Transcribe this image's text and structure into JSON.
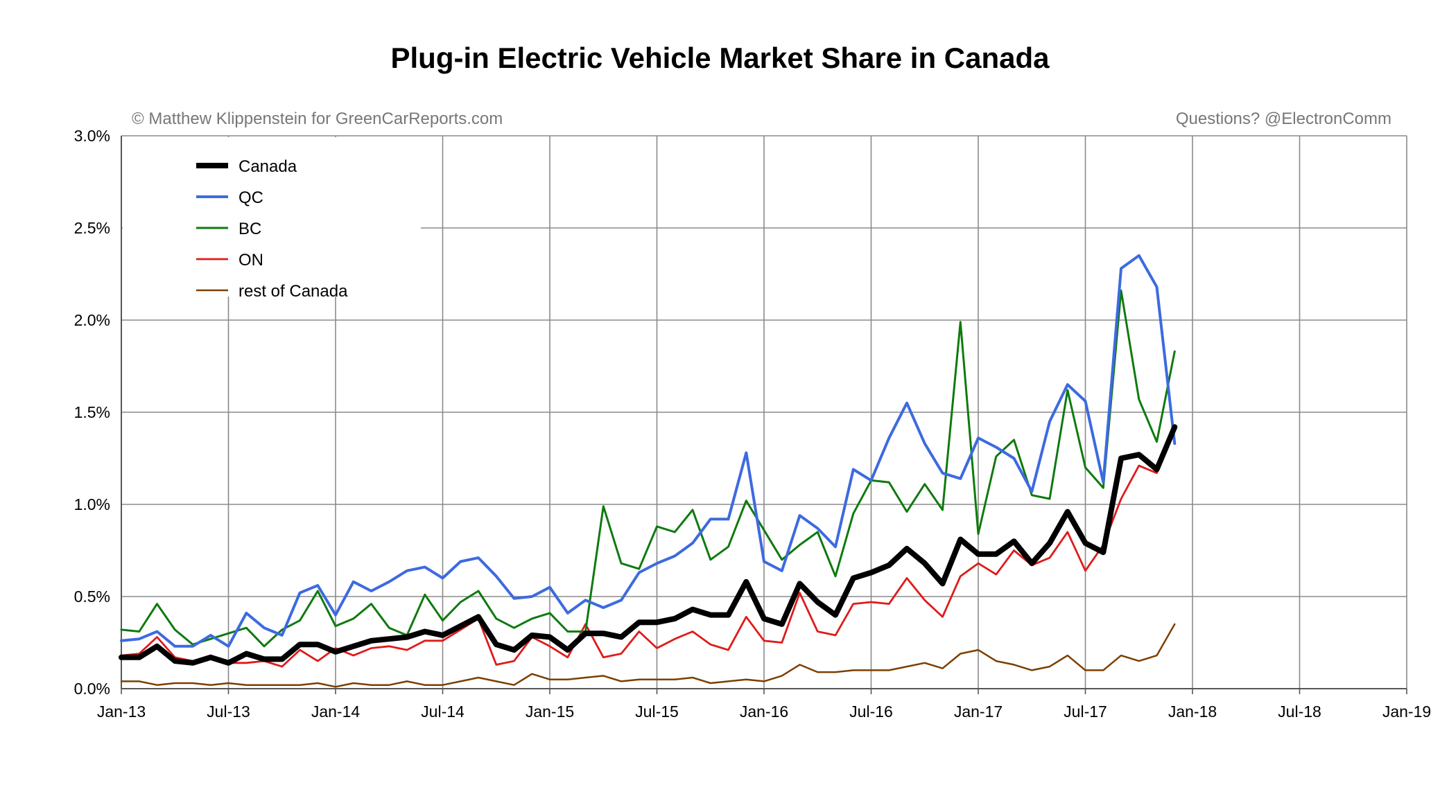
{
  "chart_data": {
    "type": "line",
    "title": "Plug-in Electric Vehicle Market Share in Canada",
    "credit_left": "© Matthew Klippenstein for GreenCarReports.com",
    "credit_right": "Questions? @ElectronComm",
    "xlabel": "",
    "ylabel": "",
    "ylim": [
      0,
      3.0
    ],
    "y_ticks": [
      "0.0%",
      "0.5%",
      "1.0%",
      "1.5%",
      "2.0%",
      "2.5%",
      "3.0%"
    ],
    "x_ticks": [
      "Jan-13",
      "Jul-13",
      "Jan-14",
      "Jul-14",
      "Jan-15",
      "Jul-15",
      "Jan-16",
      "Jul-16",
      "Jan-17",
      "Jul-17",
      "Jan-18",
      "Jul-18",
      "Jan-19"
    ],
    "grid": true,
    "legend_position": "top-left",
    "series": [
      {
        "name": "Canada",
        "color": "#000000",
        "values": [
          0.17,
          0.17,
          0.23,
          0.15,
          0.14,
          0.17,
          0.14,
          0.19,
          0.16,
          0.16,
          0.24,
          0.24,
          0.2,
          0.23,
          0.26,
          0.27,
          0.28,
          0.31,
          0.29,
          0.34,
          0.39,
          0.24,
          0.21,
          0.29,
          0.28,
          0.21,
          0.3,
          0.3,
          0.28,
          0.36,
          0.36,
          0.38,
          0.43,
          0.4,
          0.4,
          0.58,
          0.38,
          0.35,
          0.57,
          0.47,
          0.4,
          0.6,
          0.63,
          0.67,
          0.76,
          0.68,
          0.57,
          0.81,
          0.73,
          0.73,
          0.8,
          0.68,
          0.79,
          0.96,
          0.79,
          0.74,
          1.25,
          1.27,
          1.19,
          1.42
        ]
      },
      {
        "name": "QC",
        "color": "#3d6ae0",
        "values": [
          0.26,
          0.27,
          0.31,
          0.23,
          0.23,
          0.29,
          0.23,
          0.41,
          0.33,
          0.29,
          0.52,
          0.56,
          0.4,
          0.58,
          0.53,
          0.58,
          0.64,
          0.66,
          0.6,
          0.69,
          0.71,
          0.61,
          0.49,
          0.5,
          0.55,
          0.41,
          0.48,
          0.44,
          0.48,
          0.63,
          0.68,
          0.72,
          0.79,
          0.92,
          0.92,
          1.28,
          0.69,
          0.64,
          0.94,
          0.87,
          0.77,
          1.19,
          1.13,
          1.36,
          1.55,
          1.33,
          1.17,
          1.14,
          1.36,
          1.31,
          1.25,
          1.07,
          1.45,
          1.65,
          1.56,
          1.12,
          2.28,
          2.35,
          2.18,
          1.33
        ]
      },
      {
        "name": "BC",
        "color": "#0e7a0e",
        "values": [
          0.32,
          0.31,
          0.46,
          0.32,
          0.24,
          0.27,
          0.3,
          0.33,
          0.23,
          0.32,
          0.37,
          0.53,
          0.34,
          0.38,
          0.46,
          0.33,
          0.29,
          0.51,
          0.37,
          0.47,
          0.53,
          0.38,
          0.33,
          0.38,
          0.41,
          0.31,
          0.31,
          0.99,
          0.68,
          0.65,
          0.88,
          0.85,
          0.97,
          0.7,
          0.77,
          1.02,
          0.86,
          0.7,
          0.78,
          0.85,
          0.61,
          0.95,
          1.13,
          1.12,
          0.96,
          1.11,
          0.97,
          1.99,
          0.84,
          1.26,
          1.35,
          1.05,
          1.03,
          1.62,
          1.2,
          1.09,
          2.16,
          1.57,
          1.34,
          1.83
        ]
      },
      {
        "name": "ON",
        "color": "#e01a1a",
        "values": [
          0.18,
          0.19,
          0.28,
          0.17,
          0.15,
          0.18,
          0.14,
          0.14,
          0.15,
          0.12,
          0.21,
          0.15,
          0.22,
          0.18,
          0.22,
          0.23,
          0.21,
          0.26,
          0.26,
          0.32,
          0.38,
          0.13,
          0.15,
          0.28,
          0.23,
          0.17,
          0.35,
          0.17,
          0.19,
          0.31,
          0.22,
          0.27,
          0.31,
          0.24,
          0.21,
          0.39,
          0.26,
          0.25,
          0.52,
          0.31,
          0.29,
          0.46,
          0.47,
          0.46,
          0.6,
          0.48,
          0.39,
          0.61,
          0.68,
          0.62,
          0.75,
          0.67,
          0.71,
          0.85,
          0.64,
          0.78,
          1.03,
          1.21,
          1.17,
          1.41
        ]
      },
      {
        "name": "rest of Canada",
        "color": "#7b3f00",
        "values": [
          0.04,
          0.04,
          0.02,
          0.03,
          0.03,
          0.02,
          0.03,
          0.02,
          0.02,
          0.02,
          0.02,
          0.03,
          0.01,
          0.03,
          0.02,
          0.02,
          0.04,
          0.02,
          0.02,
          0.04,
          0.06,
          0.04,
          0.02,
          0.08,
          0.05,
          0.05,
          0.06,
          0.07,
          0.04,
          0.05,
          0.05,
          0.05,
          0.06,
          0.03,
          0.04,
          0.05,
          0.04,
          0.07,
          0.13,
          0.09,
          0.09,
          0.1,
          0.1,
          0.1,
          0.12,
          0.14,
          0.11,
          0.19,
          0.21,
          0.15,
          0.13,
          0.1,
          0.12,
          0.18,
          0.1,
          0.1,
          0.18,
          0.15,
          0.18,
          0.35
        ]
      }
    ]
  }
}
